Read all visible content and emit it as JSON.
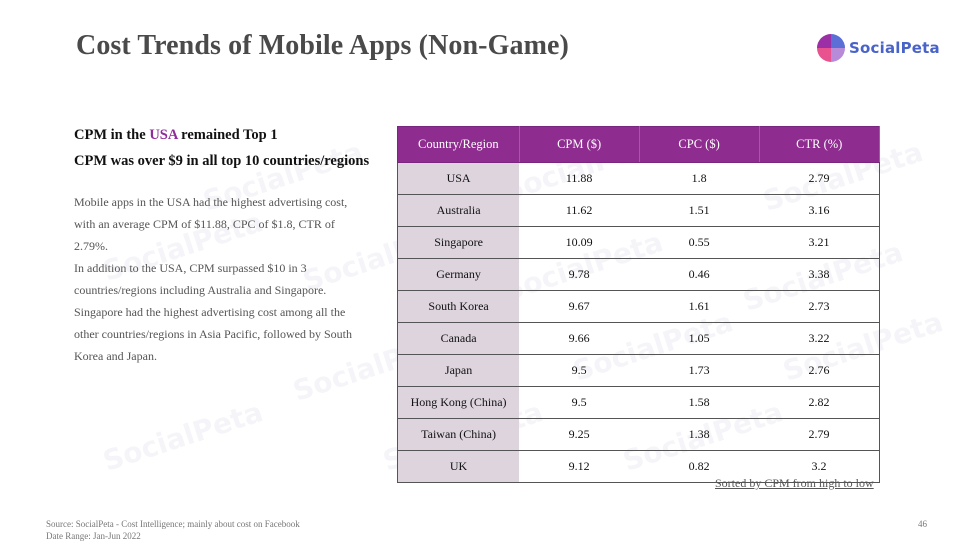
{
  "slide": {
    "title": "Cost Trends of Mobile Apps (Non-Game)",
    "logo_text": "SocialPeta",
    "headline1": {
      "prefix": "CPM in the ",
      "highlight": "USA",
      "suffix": " remained Top 1"
    },
    "headline2": "CPM was over $9 in all top 10 countries/regions",
    "paragraphs": [
      "Mobile apps in the USA had the highest advertising cost, with an average CPM of $11.88, CPC of $1.8, CTR of 2.79%.",
      "In addition to the USA, CPM surpassed $10 in 3 countries/regions including Australia and Singapore. Singapore had the highest advertising cost among all the other countries/regions in Asia Pacific, followed by South Korea and Japan."
    ],
    "note": "Sorted by CPM from high to low",
    "source_line1": "Source: SocialPeta - Cost Intelligence; mainly about cost on Facebook",
    "source_line2": "Date Range: Jan-Jun 2022",
    "page_number": "46"
  },
  "colors": {
    "header_bg": "#8e2c90",
    "region_bg": "#ddd4de",
    "highlight": "#8f2c9a",
    "logo_text": "#4a63c9"
  },
  "table": {
    "headers": [
      "Country/Region",
      "CPM ($)",
      "CPC ($)",
      "CTR (%)"
    ],
    "rows": [
      [
        "USA",
        "11.88",
        "1.8",
        "2.79"
      ],
      [
        "Australia",
        "11.62",
        "1.51",
        "3.16"
      ],
      [
        "Singapore",
        "10.09",
        "0.55",
        "3.21"
      ],
      [
        "Germany",
        "9.78",
        "0.46",
        "3.38"
      ],
      [
        "South Korea",
        "9.67",
        "1.61",
        "2.73"
      ],
      [
        "Canada",
        "9.66",
        "1.05",
        "3.22"
      ],
      [
        "Japan",
        "9.5",
        "1.73",
        "2.76"
      ],
      [
        "Hong Kong (China)",
        "9.5",
        "1.58",
        "2.82"
      ],
      [
        "Taiwan (China)",
        "9.25",
        "1.38",
        "2.79"
      ],
      [
        "UK",
        "9.12",
        "0.82",
        "3.2"
      ]
    ]
  }
}
